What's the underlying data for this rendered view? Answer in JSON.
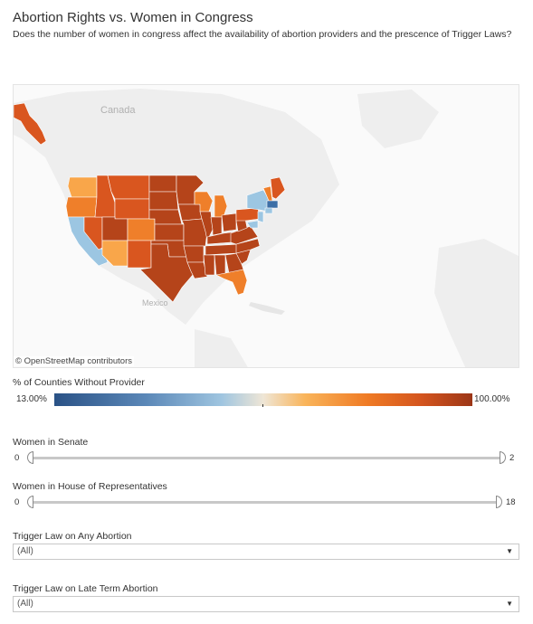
{
  "header": {
    "title": "Abortion Rights vs. Women in Congress",
    "subtitle": "Does the number of women in congress affect the availability of abortion providers and the prescence of Trigger Laws?"
  },
  "map": {
    "labels": {
      "canada": "Canada",
      "mexico": "Mexico"
    },
    "credit": "© OpenStreetMap contributors",
    "colors": {
      "dark_red": "#b5441a",
      "red_orange": "#d9561f",
      "orange": "#ef7f2a",
      "light_orange": "#f9a64a",
      "light_blue": "#9cc6e2",
      "blue": "#3d6fa6",
      "land": "#eeeeee",
      "water": "#fafafa"
    }
  },
  "legend": {
    "title": "% of Counties Without Provider",
    "min_label": "13.00%",
    "max_label": "100.00%",
    "colors": [
      "#2a5286",
      "#9fc5e0",
      "#f9b45a",
      "#ef7a24",
      "#9c3617"
    ]
  },
  "filters": {
    "senate": {
      "label": "Women in Senate",
      "min": "0",
      "max": "2"
    },
    "house": {
      "label": "Women in House of Representatives",
      "min": "0",
      "max": "18"
    },
    "trigger_any": {
      "label": "Trigger Law on Any Abortion",
      "value": "(All)"
    },
    "trigger_late": {
      "label": "Trigger Law on Late Term Abortion",
      "value": "(All)"
    }
  }
}
